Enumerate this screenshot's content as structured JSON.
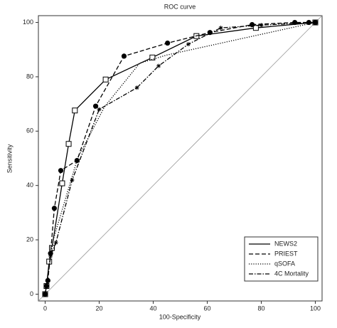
{
  "chart_data": {
    "type": "line",
    "title": "ROC curve",
    "x_label": "100-Specificity",
    "y_label": "Sensitivity",
    "xlim": [
      -2.5,
      102.5
    ],
    "ylim": [
      -2.5,
      102.5
    ],
    "xticks": [
      0,
      20,
      40,
      60,
      80,
      100
    ],
    "yticks": [
      0,
      20,
      40,
      60,
      80,
      100
    ],
    "grid": false,
    "reference_line": true,
    "legend": "lower right",
    "series": [
      {
        "name": "NEWS2",
        "color": "#000000",
        "dash": "solid",
        "marker": "square",
        "x": [
          0,
          0.5,
          1.5,
          2.5,
          6.3,
          8.7,
          11,
          22.4,
          39.7,
          56,
          78,
          100
        ],
        "values": [
          0,
          3,
          12,
          17,
          40.8,
          55.3,
          67.6,
          79,
          87.1,
          95,
          98,
          100
        ]
      },
      {
        "name": "PRIEST",
        "color": "#000000",
        "dash": "dashed",
        "marker": "circle",
        "x": [
          0,
          0.5,
          1,
          2,
          3.4,
          5.8,
          11.8,
          18.7,
          29.2,
          45.3,
          61,
          76.6,
          92.4,
          97.6,
          100
        ],
        "values": [
          0,
          3,
          5,
          15,
          31.6,
          45.5,
          49.2,
          69.2,
          87.6,
          92.4,
          96.3,
          99.2,
          100,
          100,
          100
        ]
      },
      {
        "name": "qSOFA",
        "color": "#000000",
        "dash": "dotted",
        "marker": "none",
        "x": [
          0,
          3,
          12,
          22,
          35,
          45,
          100
        ],
        "values": [
          0,
          20,
          50,
          69,
          85,
          88,
          100
        ]
      },
      {
        "name": "4C Mortality",
        "color": "#000000",
        "dash": "dashdot",
        "marker": "cross",
        "x": [
          0,
          2,
          4,
          10,
          20,
          34,
          42,
          53,
          65,
          80,
          100
        ],
        "values": [
          0,
          14,
          19,
          42,
          68,
          76,
          84,
          92,
          98,
          99,
          100
        ]
      }
    ]
  }
}
